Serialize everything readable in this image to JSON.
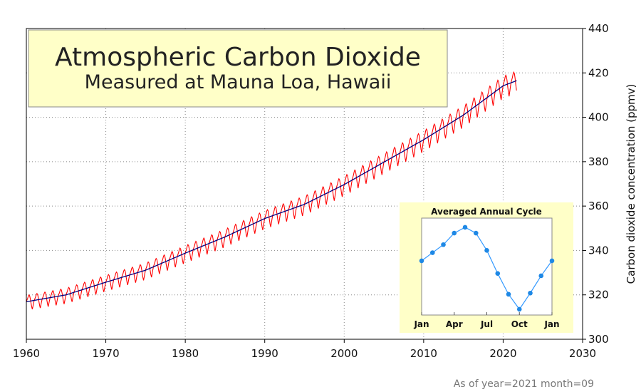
{
  "colors": {
    "seasonal_line": "#ff0000",
    "trend_line": "#000080",
    "inset_line": "#3399ff",
    "inset_marker": "#1e88e5",
    "box_fill": "#ffffc8",
    "grid": "#888888"
  },
  "footnote": "As of year=2021 month=09",
  "chart_data": [
    {
      "type": "line",
      "title": "Atmospheric Carbon Dioxide",
      "subtitle": "Measured at Mauna Loa, Hawaii",
      "xlabel": "",
      "ylabel": "Carbon dioxide concentration (ppmv)",
      "xlim": [
        1960,
        2030
      ],
      "ylim": [
        300,
        440
      ],
      "x_ticks": [
        "1960",
        "1970",
        "1980",
        "1990",
        "2000",
        "2010",
        "2020",
        "2030"
      ],
      "y_ticks": [
        "300",
        "320",
        "340",
        "360",
        "380",
        "400",
        "420",
        "440"
      ],
      "y_axis_side": "right",
      "grid": true,
      "x": [
        1960,
        1965,
        1970,
        1975,
        1980,
        1985,
        1990,
        1995,
        2000,
        2005,
        2010,
        2015,
        2020,
        2021.7
      ],
      "series": [
        {
          "name": "",
          "style": "trend",
          "values": [
            316.9,
            320.0,
            325.7,
            331.1,
            338.8,
            346.1,
            354.4,
            360.8,
            369.7,
            379.8,
            389.9,
            401.0,
            414.2,
            416.5
          ]
        },
        {
          "name": "",
          "style": "seasonal",
          "seasonal_amplitude": 3.2,
          "values": [
            316.9,
            320.0,
            325.7,
            331.1,
            338.8,
            346.1,
            354.4,
            360.8,
            369.7,
            379.8,
            389.9,
            401.0,
            414.2,
            416.5
          ]
        }
      ]
    },
    {
      "type": "line",
      "title": "Averaged Annual Cycle",
      "categories": [
        "Jan",
        "Feb",
        "Mar",
        "Apr",
        "May",
        "Jun",
        "Jul",
        "Aug",
        "Sep",
        "Oct",
        "Nov",
        "Dec",
        "Jan"
      ],
      "x_ticks": [
        "Jan",
        "Apr",
        "Jul",
        "Oct",
        "Jan"
      ],
      "values": [
        -0.1,
        0.6,
        1.3,
        2.3,
        2.8,
        2.3,
        0.8,
        -1.2,
        -3.0,
        -4.3,
        -2.9,
        -1.4,
        -0.1
      ],
      "ylim": [
        -4.8,
        3.6
      ],
      "grid": false,
      "markers": true
    }
  ]
}
